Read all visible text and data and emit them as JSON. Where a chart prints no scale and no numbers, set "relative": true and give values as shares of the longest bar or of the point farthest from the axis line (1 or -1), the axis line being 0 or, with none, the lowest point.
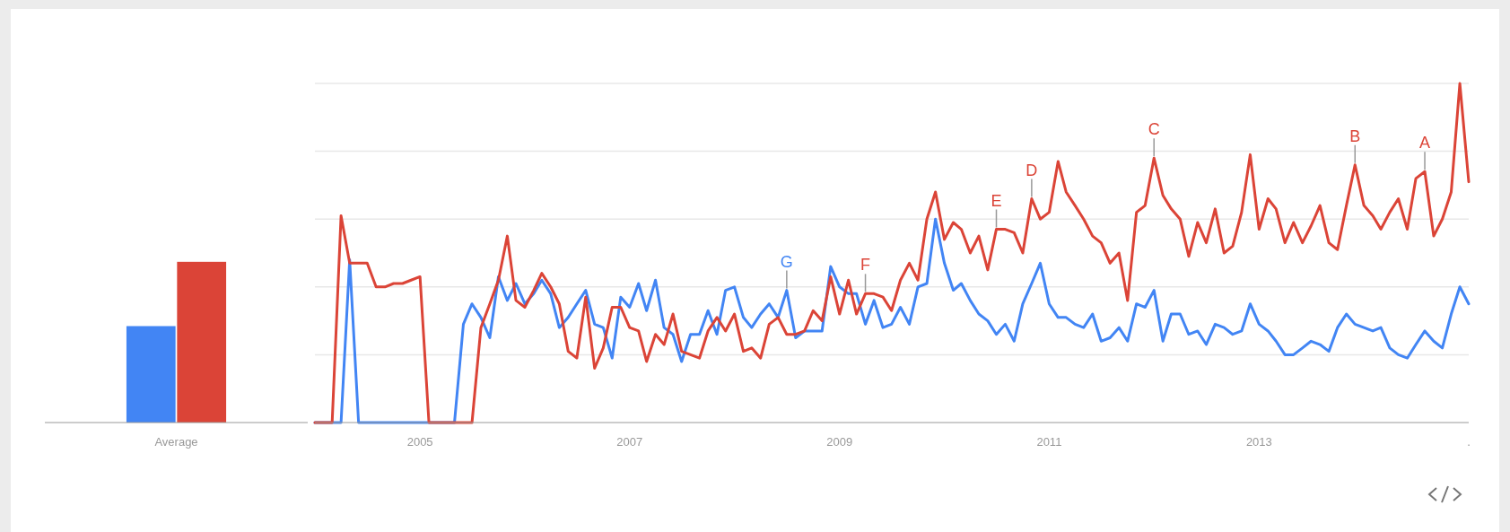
{
  "chart_data": [
    {
      "type": "bar",
      "relative": true,
      "categories": [
        "Average"
      ],
      "series": [
        {
          "color": "#4285f4",
          "values": [
            0.6
          ]
        },
        {
          "color": "#db4437",
          "values": [
            1
          ]
        }
      ]
    },
    {
      "type": "line",
      "relative": true,
      "grid": "y",
      "x": [
        "2004-01",
        "2004-02",
        "2004-03",
        "2004-04",
        "2004-05",
        "2004-06",
        "2004-07",
        "2004-08",
        "2004-09",
        "2004-10",
        "2004-11",
        "2004-12",
        "2005-01",
        "2005-02",
        "2005-03",
        "2005-04",
        "2005-05",
        "2005-06",
        "2005-07",
        "2005-08",
        "2005-09",
        "2005-10",
        "2005-11",
        "2005-12",
        "2006-01",
        "2006-02",
        "2006-03",
        "2006-04",
        "2006-05",
        "2006-06",
        "2006-07",
        "2006-08",
        "2006-09",
        "2006-10",
        "2006-11",
        "2006-12",
        "2007-01",
        "2007-02",
        "2007-03",
        "2007-04",
        "2007-05",
        "2007-06",
        "2007-07",
        "2007-08",
        "2007-09",
        "2007-10",
        "2007-11",
        "2007-12",
        "2008-01",
        "2008-02",
        "2008-03",
        "2008-04",
        "2008-05",
        "2008-06",
        "2008-07",
        "2008-08",
        "2008-09",
        "2008-10",
        "2008-11",
        "2008-12",
        "2009-01",
        "2009-02",
        "2009-03",
        "2009-04",
        "2009-05",
        "2009-06",
        "2009-07",
        "2009-08",
        "2009-09",
        "2009-10",
        "2009-11",
        "2009-12",
        "2010-01",
        "2010-02",
        "2010-03",
        "2010-04",
        "2010-05",
        "2010-06",
        "2010-07",
        "2010-08",
        "2010-09",
        "2010-10",
        "2010-11",
        "2010-12",
        "2011-01",
        "2011-02",
        "2011-03",
        "2011-04",
        "2011-05",
        "2011-06",
        "2011-07",
        "2011-08",
        "2011-09",
        "2011-10",
        "2011-11",
        "2011-12",
        "2012-01",
        "2012-02",
        "2012-03",
        "2012-04",
        "2012-05",
        "2012-06",
        "2012-07",
        "2012-08",
        "2012-09",
        "2012-10",
        "2012-11",
        "2012-12",
        "2013-01",
        "2013-02",
        "2013-03",
        "2013-04",
        "2013-05",
        "2013-06",
        "2013-07",
        "2013-08",
        "2013-09",
        "2013-10",
        "2013-11",
        "2013-12",
        "2014-01",
        "2014-02",
        "2014-03",
        "2014-04",
        "2014-05",
        "2014-06",
        "2014-07",
        "2014-08",
        "2014-09",
        "2014-10",
        "2014-11",
        "2014-12",
        "2015-01"
      ],
      "xlim": [
        "2004-01",
        "2015-01"
      ],
      "xticks": [
        {
          "value": "2005-01",
          "label": "2005"
        },
        {
          "value": "2007-01",
          "label": "2007"
        },
        {
          "value": "2009-01",
          "label": "2009"
        },
        {
          "value": "2011-01",
          "label": "2011"
        },
        {
          "value": "2013-01",
          "label": "2013"
        },
        {
          "value": "2015-01",
          "label": "."
        }
      ],
      "series": [
        {
          "color": "#4285f4",
          "values": [
            0,
            0,
            0,
            0,
            0.48,
            0,
            0,
            0,
            0,
            0,
            0,
            0,
            0,
            0,
            0,
            0,
            0,
            0.29,
            0.35,
            0.31,
            0.25,
            0.43,
            0.36,
            0.41,
            0.35,
            0.38,
            0.42,
            0.38,
            0.28,
            0.31,
            0.35,
            0.39,
            0.29,
            0.28,
            0.19,
            0.37,
            0.34,
            0.41,
            0.33,
            0.42,
            0.28,
            0.26,
            0.18,
            0.26,
            0.26,
            0.33,
            0.26,
            0.39,
            0.4,
            0.31,
            0.28,
            0.32,
            0.35,
            0.31,
            0.39,
            0.25,
            0.27,
            0.27,
            0.27,
            0.46,
            0.4,
            0.38,
            0.38,
            0.29,
            0.36,
            0.28,
            0.29,
            0.34,
            0.29,
            0.4,
            0.41,
            0.6,
            0.47,
            0.39,
            0.41,
            0.36,
            0.32,
            0.3,
            0.26,
            0.29,
            0.24,
            0.35,
            0.41,
            0.47,
            0.35,
            0.31,
            0.31,
            0.29,
            0.28,
            0.32,
            0.24,
            0.25,
            0.28,
            0.24,
            0.35,
            0.34,
            0.39,
            0.24,
            0.32,
            0.32,
            0.26,
            0.27,
            0.23,
            0.29,
            0.28,
            0.26,
            0.27,
            0.35,
            0.29,
            0.27,
            0.24,
            0.2,
            0.2,
            0.22,
            0.24,
            0.23,
            0.21,
            0.28,
            0.32,
            0.29,
            0.28,
            0.27,
            0.28,
            0.22,
            0.2,
            0.19,
            0.23,
            0.27,
            0.24,
            0.22,
            0.32,
            0.4,
            0.35
          ]
        },
        {
          "color": "#db4437",
          "values": [
            0,
            0,
            0,
            0.61,
            0.47,
            0.47,
            0.47,
            0.4,
            0.4,
            0.41,
            0.41,
            0.42,
            0.43,
            0,
            0,
            0,
            0,
            0,
            0,
            0.28,
            0.35,
            0.42,
            0.55,
            0.36,
            0.34,
            0.39,
            0.44,
            0.4,
            0.35,
            0.21,
            0.19,
            0.37,
            0.16,
            0.22,
            0.34,
            0.34,
            0.28,
            0.27,
            0.18,
            0.26,
            0.23,
            0.32,
            0.21,
            0.2,
            0.19,
            0.27,
            0.31,
            0.27,
            0.32,
            0.21,
            0.22,
            0.19,
            0.29,
            0.31,
            0.26,
            0.26,
            0.27,
            0.33,
            0.3,
            0.43,
            0.32,
            0.42,
            0.32,
            0.38,
            0.38,
            0.37,
            0.33,
            0.42,
            0.47,
            0.42,
            0.6,
            0.68,
            0.54,
            0.59,
            0.57,
            0.5,
            0.55,
            0.45,
            0.57,
            0.57,
            0.56,
            0.5,
            0.66,
            0.6,
            0.62,
            0.77,
            0.68,
            0.64,
            0.6,
            0.55,
            0.53,
            0.47,
            0.5,
            0.36,
            0.62,
            0.64,
            0.78,
            0.67,
            0.63,
            0.6,
            0.49,
            0.59,
            0.53,
            0.63,
            0.5,
            0.52,
            0.62,
            0.79,
            0.57,
            0.66,
            0.63,
            0.53,
            0.59,
            0.53,
            0.58,
            0.64,
            0.53,
            0.51,
            0.64,
            0.76,
            0.64,
            0.61,
            0.57,
            0.62,
            0.66,
            0.57,
            0.72,
            0.74,
            0.55,
            0.6,
            0.68,
            1,
            0.71
          ]
        }
      ],
      "annotations": [
        {
          "text": "G",
          "x": "2008-07",
          "y": 0.39
        },
        {
          "text": "F",
          "x": "2009-04",
          "y": 0.38
        },
        {
          "text": "E",
          "x": "2010-07",
          "y": 0.57
        },
        {
          "text": "D",
          "x": "2010-11",
          "y": 0.66
        },
        {
          "text": "C",
          "x": "2012-01",
          "y": 0.78
        },
        {
          "text": "B",
          "x": "2013-12",
          "y": 0.76
        },
        {
          "text": "A",
          "x": "2014-08",
          "y": 0.74
        }
      ]
    }
  ]
}
